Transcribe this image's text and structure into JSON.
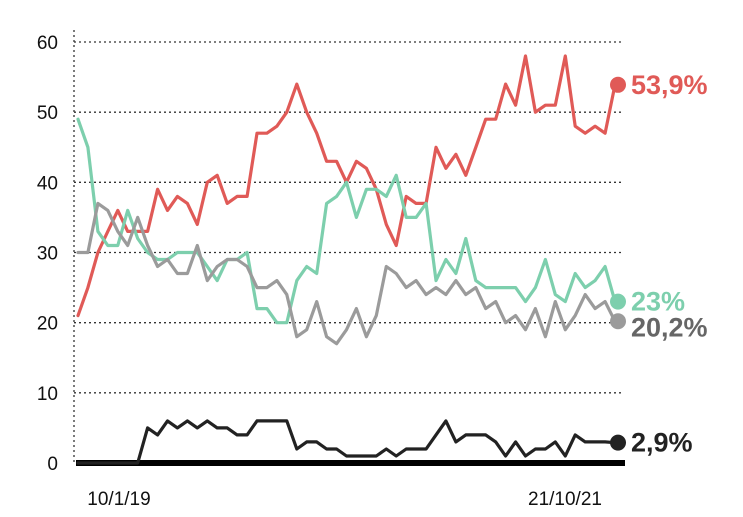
{
  "chart_data": {
    "type": "line",
    "title": "",
    "xlabel": "",
    "ylabel": "",
    "ylim": [
      0,
      60
    ],
    "yticks": [
      "0",
      "10",
      "20",
      "30",
      "40",
      "50",
      "60"
    ],
    "xticks": [
      "10/1/19",
      "21/10/21"
    ],
    "grid": "horizontal dotted",
    "legend": "none (end labels)",
    "series": [
      {
        "color": "#e05a57",
        "end_label": "53,9%",
        "values": [
          21,
          25,
          30,
          33,
          36,
          33,
          33,
          33,
          39,
          36,
          38,
          37,
          34,
          40,
          41,
          37,
          38,
          38,
          47,
          47,
          48,
          50,
          54,
          50,
          47,
          43,
          43,
          40,
          43,
          42,
          39,
          34,
          31,
          38,
          37,
          37,
          45,
          42,
          44,
          41,
          45,
          49,
          49,
          54,
          51,
          58,
          50,
          51,
          51,
          58,
          48,
          47,
          48,
          47,
          53.9
        ]
      },
      {
        "color": "#7dcfad",
        "end_label": "23%",
        "values": [
          49,
          45,
          33,
          31,
          31,
          36,
          32,
          30,
          29,
          29,
          30,
          30,
          30,
          28,
          26,
          29,
          29,
          30,
          22,
          22,
          20,
          20,
          26,
          28,
          27,
          37,
          38,
          40,
          35,
          39,
          39,
          38,
          41,
          35,
          35,
          37,
          26,
          29,
          27,
          32,
          26,
          25,
          25,
          25,
          25,
          23,
          25,
          29,
          24,
          23,
          27,
          25,
          26,
          28,
          23
        ]
      },
      {
        "color": "#9b9b9b",
        "end_label": "20,2%",
        "values": [
          30,
          30,
          37,
          36,
          33,
          31,
          35,
          31,
          28,
          29,
          27,
          27,
          31,
          26,
          28,
          29,
          29,
          28,
          25,
          25,
          26,
          24,
          18,
          19,
          23,
          18,
          17,
          19,
          22,
          18,
          21,
          28,
          27,
          25,
          26,
          24,
          25,
          24,
          26,
          24,
          25,
          22,
          23,
          20,
          21,
          19,
          22,
          18,
          23,
          19,
          21,
          24,
          22,
          23,
          20.2
        ]
      },
      {
        "color": "#222222",
        "end_label": "2,9%",
        "values": [
          0,
          0,
          0,
          0,
          0,
          0,
          0,
          5,
          4,
          6,
          5,
          6,
          5,
          6,
          5,
          5,
          4,
          4,
          6,
          6,
          6,
          6,
          2,
          3,
          3,
          2,
          2,
          1,
          1,
          1,
          1,
          2,
          1,
          2,
          2,
          2,
          4,
          6,
          3,
          4,
          4,
          4,
          3,
          1,
          3,
          1,
          2,
          2,
          3,
          1,
          4,
          3,
          3,
          3,
          2.9
        ]
      }
    ]
  }
}
